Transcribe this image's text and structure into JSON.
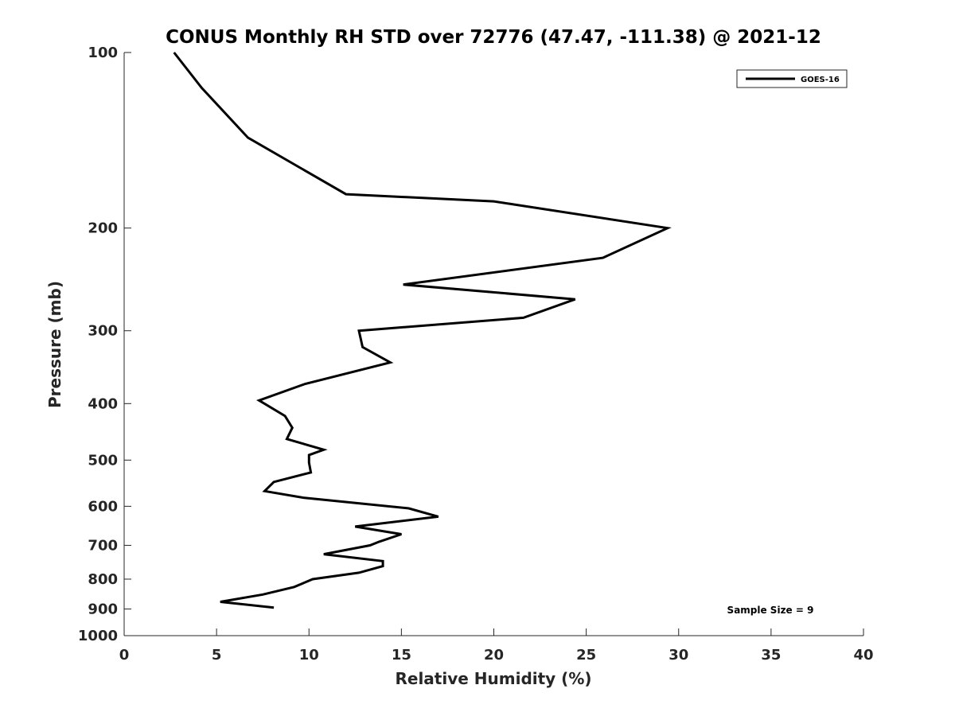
{
  "chart_data": {
    "type": "line",
    "title": "CONUS Monthly RH STD over 72776 (47.47, -111.38) @ 2021-12",
    "xlabel": "Relative Humidity (%)",
    "ylabel": "Pressure (mb)",
    "xlim": [
      0,
      40
    ],
    "ylim": [
      100,
      1000
    ],
    "y_scale": "log",
    "y_reversed": true,
    "xticks": [
      0,
      5,
      10,
      15,
      20,
      25,
      30,
      35,
      40
    ],
    "yticks": [
      100,
      200,
      300,
      400,
      500,
      600,
      700,
      800,
      900,
      1000
    ],
    "grid": false,
    "legend_position": "top-right",
    "annotation": "Sample Size = 9",
    "series": [
      {
        "name": "GOES-16",
        "color": "#000000",
        "x": [
          2.7,
          4.2,
          6.7,
          12.0,
          20.0,
          29.4,
          25.9,
          15.1,
          24.4,
          21.6,
          12.7,
          12.9,
          14.4,
          9.8,
          7.3,
          8.7,
          9.1,
          8.8,
          10.8,
          10.0,
          10.0,
          10.1,
          8.1,
          7.6,
          9.7,
          15.4,
          17.0,
          12.5,
          15.0,
          13.8,
          13.3,
          10.8,
          14.0,
          14.0,
          12.7,
          10.2,
          9.2,
          7.5,
          5.2,
          8.1
        ],
        "y": [
          100,
          115,
          140,
          175,
          180,
          200,
          225,
          250,
          265,
          285,
          300,
          320,
          340,
          370,
          395,
          420,
          440,
          460,
          480,
          490,
          505,
          525,
          545,
          565,
          580,
          605,
          625,
          650,
          670,
          690,
          700,
          725,
          745,
          760,
          780,
          800,
          825,
          850,
          875,
          895
        ]
      }
    ]
  }
}
